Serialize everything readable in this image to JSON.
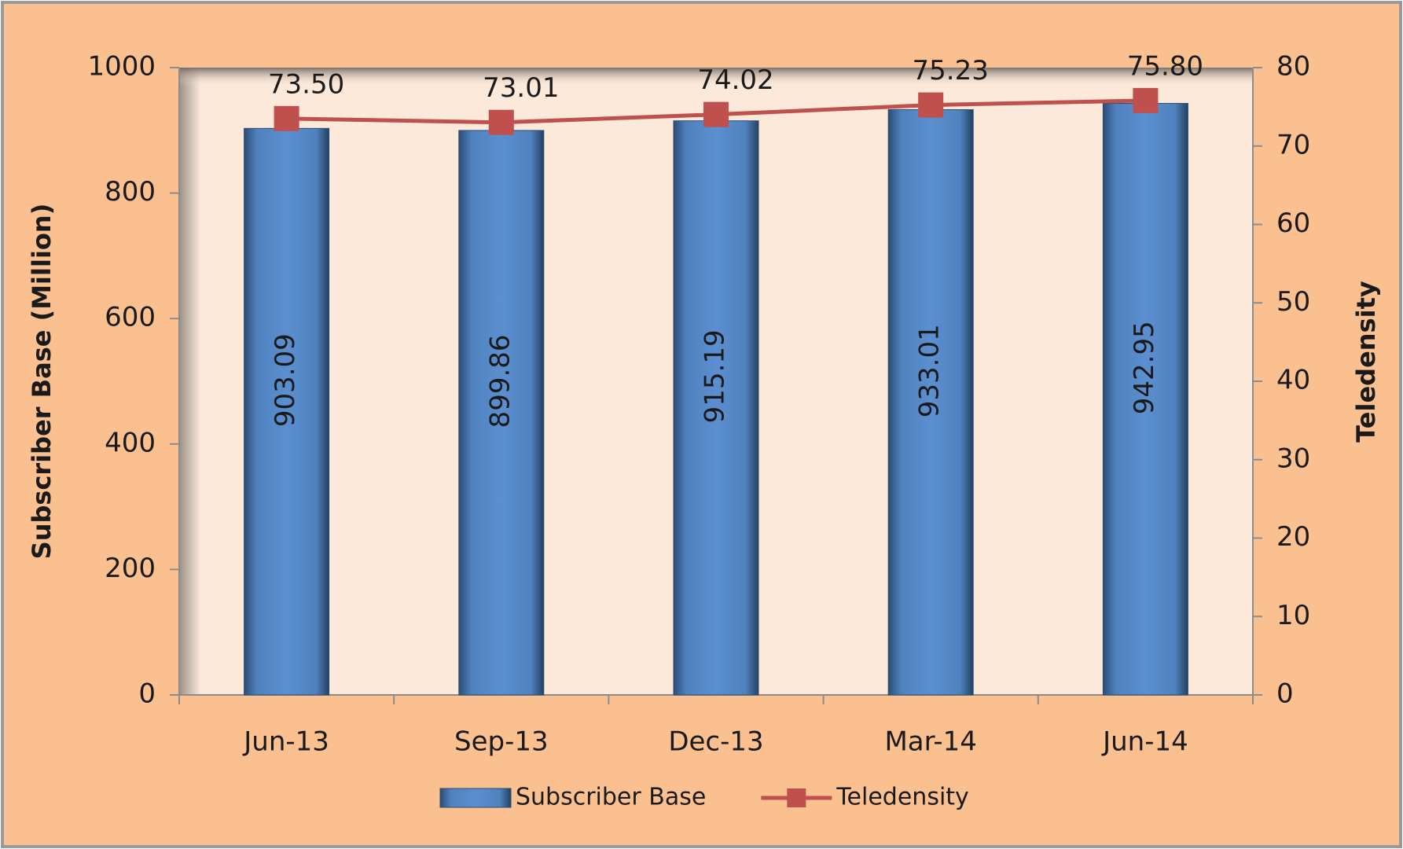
{
  "chart_data": {
    "type": "bar",
    "categories": [
      "Jun-13",
      "Sep-13",
      "Dec-13",
      "Mar-14",
      "Jun-14"
    ],
    "series": [
      {
        "name": "Subscriber Base",
        "color": "#4f81bd",
        "values": [
          903.09,
          899.86,
          915.19,
          933.01,
          942.95
        ]
      },
      {
        "name": "Teledensity",
        "color": "#c0504d",
        "type": "line",
        "axis": "y2",
        "values": [
          73.5,
          73.01,
          74.02,
          75.23,
          75.8
        ],
        "value_labels": [
          "73.50",
          "73.01",
          "74.02",
          "75.23",
          "75.80"
        ]
      }
    ],
    "ylabel": "Subscriber Base (Million)",
    "y2label": "Teledensity",
    "ylim": [
      0,
      1000
    ],
    "yticks": [
      0,
      200,
      400,
      600,
      800,
      1000
    ],
    "y2lim": [
      0,
      80
    ],
    "y2ticks": [
      0,
      10,
      20,
      30,
      40,
      50,
      60,
      70,
      80
    ],
    "legend": "bottom"
  }
}
